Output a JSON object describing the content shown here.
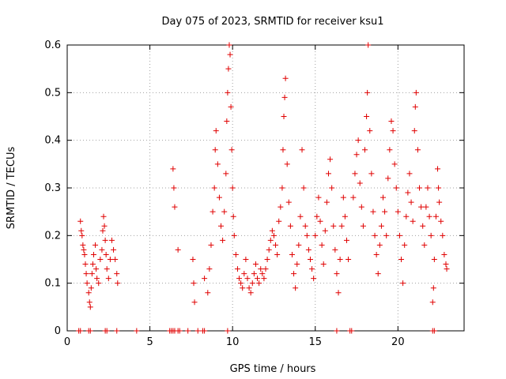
{
  "chart_data": {
    "type": "scatter",
    "title": "Day 075 of 2023, SRMTID for receiver ksu1",
    "xlabel": "GPS time / hours",
    "ylabel": "SRMTID / TECUs",
    "xlim": [
      0,
      24
    ],
    "ylim": [
      0,
      0.6
    ],
    "x_ticks": [
      0,
      5,
      10,
      15,
      20
    ],
    "x_tick_labels": [
      "0",
      "5",
      "10",
      "15",
      "20"
    ],
    "y_ticks": [
      0,
      0.1,
      0.2,
      0.3,
      0.4,
      0.5,
      0.6
    ],
    "y_tick_labels": [
      "0",
      "0.1",
      "0.2",
      "0.3",
      "0.4",
      "0.5",
      "0.6"
    ],
    "grid": true,
    "marker": "plus",
    "series_color": "#e00000",
    "series": [
      {
        "name": "SRMTID",
        "points": [
          [
            0.8,
            0.23
          ],
          [
            0.85,
            0.21
          ],
          [
            0.9,
            0.2
          ],
          [
            0.95,
            0.18
          ],
          [
            1.0,
            0.17
          ],
          [
            1.05,
            0.16
          ],
          [
            1.1,
            0.14
          ],
          [
            1.15,
            0.12
          ],
          [
            1.2,
            0.1
          ],
          [
            1.3,
            0.08
          ],
          [
            1.35,
            0.06
          ],
          [
            1.4,
            0.05
          ],
          [
            1.45,
            0.09
          ],
          [
            1.5,
            0.12
          ],
          [
            1.55,
            0.14
          ],
          [
            1.6,
            0.16
          ],
          [
            1.7,
            0.18
          ],
          [
            1.75,
            0.13
          ],
          [
            1.8,
            0.11
          ],
          [
            1.9,
            0.1
          ],
          [
            2.0,
            0.15
          ],
          [
            2.1,
            0.17
          ],
          [
            2.15,
            0.21
          ],
          [
            2.2,
            0.24
          ],
          [
            2.25,
            0.22
          ],
          [
            2.3,
            0.19
          ],
          [
            2.35,
            0.16
          ],
          [
            2.4,
            0.13
          ],
          [
            2.5,
            0.11
          ],
          [
            2.6,
            0.15
          ],
          [
            2.7,
            0.19
          ],
          [
            2.8,
            0.17
          ],
          [
            2.9,
            0.15
          ],
          [
            3.0,
            0.12
          ],
          [
            3.05,
            0.1
          ],
          [
            6.4,
            0.34
          ],
          [
            6.45,
            0.3
          ],
          [
            6.5,
            0.26
          ],
          [
            6.7,
            0.17
          ],
          [
            7.6,
            0.15
          ],
          [
            7.65,
            0.1
          ],
          [
            7.7,
            0.06
          ],
          [
            8.3,
            0.11
          ],
          [
            8.5,
            0.08
          ],
          [
            8.6,
            0.13
          ],
          [
            8.7,
            0.18
          ],
          [
            8.8,
            0.25
          ],
          [
            8.9,
            0.3
          ],
          [
            8.95,
            0.38
          ],
          [
            9.0,
            0.42
          ],
          [
            9.1,
            0.35
          ],
          [
            9.2,
            0.28
          ],
          [
            9.3,
            0.22
          ],
          [
            9.4,
            0.19
          ],
          [
            9.5,
            0.25
          ],
          [
            9.6,
            0.33
          ],
          [
            9.65,
            0.44
          ],
          [
            9.7,
            0.5
          ],
          [
            9.75,
            0.55
          ],
          [
            9.8,
            0.6
          ],
          [
            9.85,
            0.58
          ],
          [
            9.9,
            0.47
          ],
          [
            9.95,
            0.38
          ],
          [
            10.0,
            0.3
          ],
          [
            10.05,
            0.24
          ],
          [
            10.1,
            0.2
          ],
          [
            10.2,
            0.16
          ],
          [
            10.3,
            0.13
          ],
          [
            10.4,
            0.11
          ],
          [
            10.5,
            0.1
          ],
          [
            10.6,
            0.09
          ],
          [
            10.7,
            0.12
          ],
          [
            10.8,
            0.15
          ],
          [
            10.9,
            0.11
          ],
          [
            11.0,
            0.09
          ],
          [
            11.1,
            0.08
          ],
          [
            11.2,
            0.1
          ],
          [
            11.3,
            0.12
          ],
          [
            11.4,
            0.14
          ],
          [
            11.5,
            0.11
          ],
          [
            11.6,
            0.1
          ],
          [
            11.7,
            0.13
          ],
          [
            11.8,
            0.12
          ],
          [
            11.9,
            0.11
          ],
          [
            12.0,
            0.13
          ],
          [
            12.1,
            0.15
          ],
          [
            12.2,
            0.17
          ],
          [
            12.3,
            0.19
          ],
          [
            12.4,
            0.21
          ],
          [
            12.5,
            0.2
          ],
          [
            12.6,
            0.18
          ],
          [
            12.7,
            0.16
          ],
          [
            12.8,
            0.23
          ],
          [
            12.9,
            0.26
          ],
          [
            13.0,
            0.3
          ],
          [
            13.05,
            0.38
          ],
          [
            13.1,
            0.45
          ],
          [
            13.15,
            0.49
          ],
          [
            13.2,
            0.53
          ],
          [
            13.3,
            0.35
          ],
          [
            13.4,
            0.27
          ],
          [
            13.5,
            0.22
          ],
          [
            13.6,
            0.16
          ],
          [
            13.7,
            0.12
          ],
          [
            13.8,
            0.09
          ],
          [
            13.9,
            0.14
          ],
          [
            14.0,
            0.18
          ],
          [
            14.1,
            0.24
          ],
          [
            14.2,
            0.38
          ],
          [
            14.3,
            0.3
          ],
          [
            14.4,
            0.22
          ],
          [
            14.5,
            0.2
          ],
          [
            14.6,
            0.17
          ],
          [
            14.7,
            0.15
          ],
          [
            14.8,
            0.13
          ],
          [
            14.9,
            0.11
          ],
          [
            15.0,
            0.2
          ],
          [
            15.1,
            0.24
          ],
          [
            15.2,
            0.28
          ],
          [
            15.3,
            0.23
          ],
          [
            15.4,
            0.18
          ],
          [
            15.5,
            0.14
          ],
          [
            15.6,
            0.21
          ],
          [
            15.7,
            0.27
          ],
          [
            15.8,
            0.33
          ],
          [
            15.9,
            0.36
          ],
          [
            16.0,
            0.3
          ],
          [
            16.1,
            0.22
          ],
          [
            16.2,
            0.17
          ],
          [
            16.3,
            0.12
          ],
          [
            16.4,
            0.08
          ],
          [
            16.5,
            0.15
          ],
          [
            16.6,
            0.22
          ],
          [
            16.7,
            0.28
          ],
          [
            16.8,
            0.24
          ],
          [
            16.9,
            0.19
          ],
          [
            17.0,
            0.15
          ],
          [
            17.3,
            0.28
          ],
          [
            17.4,
            0.33
          ],
          [
            17.5,
            0.37
          ],
          [
            17.6,
            0.4
          ],
          [
            17.7,
            0.31
          ],
          [
            17.8,
            0.26
          ],
          [
            17.9,
            0.22
          ],
          [
            18.0,
            0.38
          ],
          [
            18.1,
            0.45
          ],
          [
            18.15,
            0.5
          ],
          [
            18.2,
            0.6
          ],
          [
            18.3,
            0.42
          ],
          [
            18.4,
            0.33
          ],
          [
            18.5,
            0.25
          ],
          [
            18.6,
            0.2
          ],
          [
            18.7,
            0.16
          ],
          [
            18.8,
            0.12
          ],
          [
            18.9,
            0.18
          ],
          [
            19.0,
            0.22
          ],
          [
            19.1,
            0.28
          ],
          [
            19.2,
            0.25
          ],
          [
            19.3,
            0.2
          ],
          [
            19.4,
            0.32
          ],
          [
            19.5,
            0.38
          ],
          [
            19.6,
            0.44
          ],
          [
            19.7,
            0.42
          ],
          [
            19.8,
            0.35
          ],
          [
            19.9,
            0.3
          ],
          [
            20.0,
            0.25
          ],
          [
            20.1,
            0.2
          ],
          [
            20.2,
            0.15
          ],
          [
            20.3,
            0.1
          ],
          [
            20.4,
            0.18
          ],
          [
            20.5,
            0.24
          ],
          [
            20.6,
            0.29
          ],
          [
            20.7,
            0.33
          ],
          [
            20.8,
            0.27
          ],
          [
            20.9,
            0.23
          ],
          [
            21.0,
            0.42
          ],
          [
            21.05,
            0.47
          ],
          [
            21.1,
            0.5
          ],
          [
            21.2,
            0.38
          ],
          [
            21.3,
            0.3
          ],
          [
            21.4,
            0.26
          ],
          [
            21.5,
            0.22
          ],
          [
            21.6,
            0.18
          ],
          [
            21.7,
            0.26
          ],
          [
            21.8,
            0.3
          ],
          [
            21.9,
            0.24
          ],
          [
            22.0,
            0.2
          ],
          [
            22.1,
            0.06
          ],
          [
            22.15,
            0.09
          ],
          [
            22.2,
            0.15
          ],
          [
            22.3,
            0.24
          ],
          [
            22.4,
            0.34
          ],
          [
            22.45,
            0.3
          ],
          [
            22.5,
            0.27
          ],
          [
            22.6,
            0.23
          ],
          [
            22.7,
            0.2
          ],
          [
            22.8,
            0.16
          ],
          [
            22.9,
            0.14
          ],
          [
            22.95,
            0.13
          ]
        ],
        "zero_points": [
          0.7,
          0.8,
          1.3,
          1.4,
          2.3,
          2.4,
          3.0,
          4.2,
          6.2,
          6.3,
          6.4,
          6.5,
          6.7,
          6.8,
          7.3,
          7.9,
          8.2,
          8.3,
          9.7,
          16.3,
          17.1,
          17.2,
          22.1,
          22.2
        ]
      }
    ]
  }
}
